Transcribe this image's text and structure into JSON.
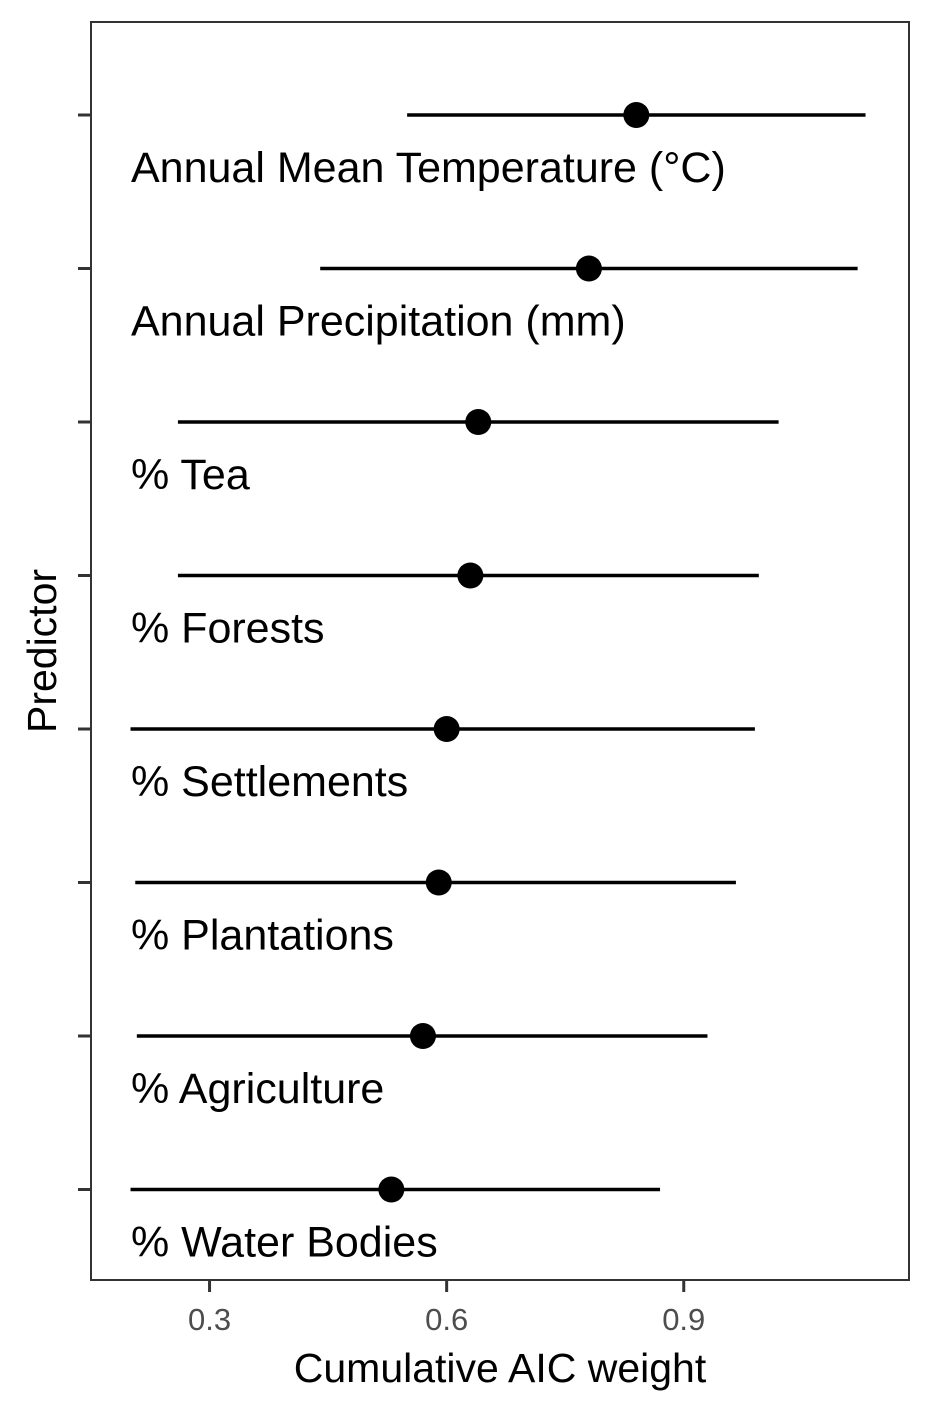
{
  "chart_data": {
    "type": "scatter",
    "subtype": "point-range",
    "title": "",
    "xlabel": "Cumulative AIC weight",
    "ylabel": "Predictor",
    "xlim": [
      0.15,
      1.185
    ],
    "xticks": [
      0.3,
      0.6,
      0.9
    ],
    "xtick_labels": [
      "0.3",
      "0.6",
      "0.9"
    ],
    "grid": false,
    "legend": "none",
    "colors": {
      "point": "#000000",
      "line": "#000000",
      "panel_border": "#333333",
      "tick": "#333333",
      "tick_label": "#4d4d4d"
    },
    "points": [
      {
        "label": "Annual Mean Temperature (°C)",
        "estimate": 0.84,
        "lower": 0.55,
        "upper": 1.13
      },
      {
        "label": "Annual Precipitation (mm)",
        "estimate": 0.78,
        "lower": 0.44,
        "upper": 1.12
      },
      {
        "label": "% Tea",
        "estimate": 0.64,
        "lower": 0.26,
        "upper": 1.02
      },
      {
        "label": "% Forests",
        "estimate": 0.63,
        "lower": 0.26,
        "upper": 0.995
      },
      {
        "label": "% Settlements",
        "estimate": 0.6,
        "lower": 0.2,
        "upper": 0.99
      },
      {
        "label": "% Plantations",
        "estimate": 0.59,
        "lower": 0.206,
        "upper": 0.966
      },
      {
        "label": "% Agriculture",
        "estimate": 0.57,
        "lower": 0.208,
        "upper": 0.93
      },
      {
        "label": "% Water Bodies",
        "estimate": 0.53,
        "lower": 0.2,
        "upper": 0.87
      }
    ]
  }
}
